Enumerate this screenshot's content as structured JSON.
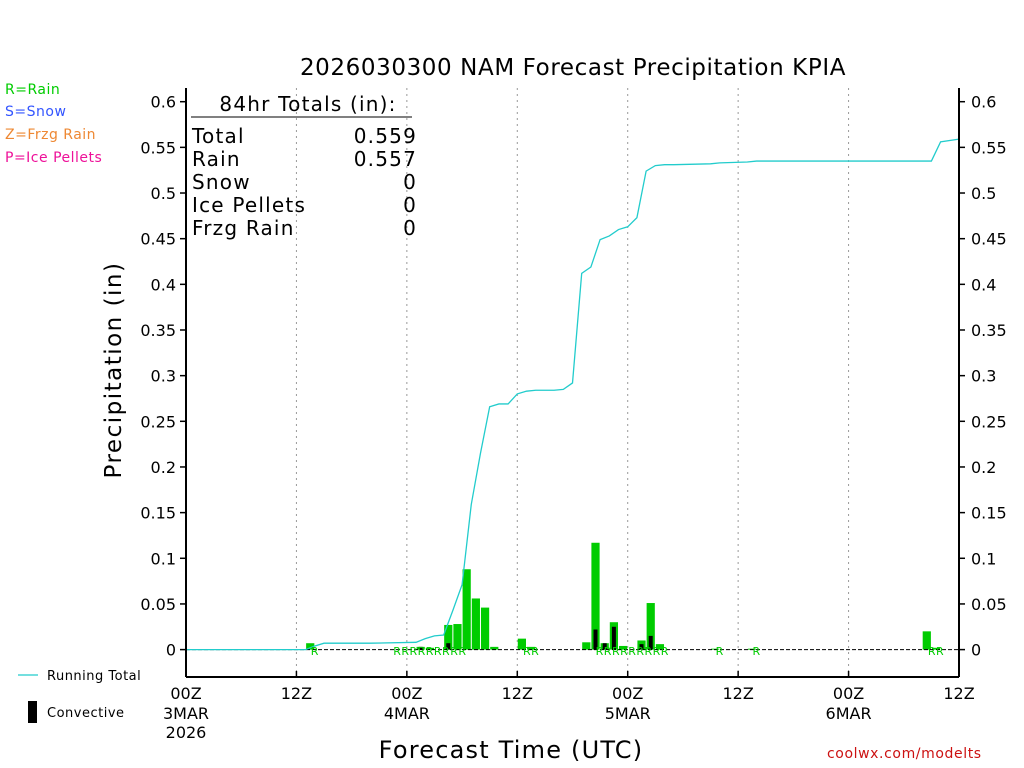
{
  "colors": {
    "rain": "#00cc00",
    "snow": "#3355ff",
    "frzg": "#ee8833",
    "ice": "#ee1199",
    "running_total": "#22cccc",
    "convective": "#000000",
    "credit": "#cc1111"
  },
  "legend": {
    "rain": "R=Rain",
    "snow": "S=Snow",
    "frzg": "Z=Frzg Rain",
    "ice": "P=Ice Pellets",
    "running_total": "Running Total",
    "convective": "Convective"
  },
  "credit": "coolwx.com/modelts",
  "chart_data": {
    "type": "bar",
    "title": "2026030300 NAM Forecast Precipitation KPIA",
    "xlabel": "Forecast Time (UTC)",
    "ylabel": "Precipitation (in)",
    "ylim": [
      -0.03,
      0.615
    ],
    "xlim_hours": [
      0,
      84
    ],
    "y_ticks": [
      0,
      0.05,
      0.1,
      0.15,
      0.2,
      0.25,
      0.3,
      0.35,
      0.4,
      0.45,
      0.5,
      0.55,
      0.6
    ],
    "y_tick_labels": [
      "0",
      "0.05",
      "0.1",
      "0.15",
      "0.2",
      "0.25",
      "0.3",
      "0.35",
      "0.4",
      "0.45",
      "0.5",
      "0.55",
      "0.6"
    ],
    "x_ticks": [
      {
        "hour": 0,
        "label": "00Z",
        "date": "3MAR",
        "year": "2026"
      },
      {
        "hour": 12,
        "label": "12Z",
        "date": "",
        "year": ""
      },
      {
        "hour": 24,
        "label": "00Z",
        "date": "4MAR",
        "year": ""
      },
      {
        "hour": 36,
        "label": "12Z",
        "date": "",
        "year": ""
      },
      {
        "hour": 48,
        "label": "00Z",
        "date": "5MAR",
        "year": ""
      },
      {
        "hour": 60,
        "label": "12Z",
        "date": "",
        "year": ""
      },
      {
        "hour": 72,
        "label": "00Z",
        "date": "6MAR",
        "year": ""
      },
      {
        "hour": 84,
        "label": "12Z",
        "date": "",
        "year": ""
      }
    ],
    "totals_box": {
      "header": "84hr Totals (in):",
      "rows": [
        {
          "label": "Total",
          "value": "0.559"
        },
        {
          "label": "Rain",
          "value": "0.557"
        },
        {
          "label": "Snow",
          "value": "0"
        },
        {
          "label": "Ice Pellets",
          "value": "0"
        },
        {
          "label": "Frzg Rain",
          "value": "0"
        }
      ]
    },
    "series": [
      {
        "name": "Rain (hourly)",
        "type": "bar",
        "x": [
          14,
          26,
          27,
          29,
          30,
          31,
          32,
          33,
          34,
          35,
          37,
          38,
          44,
          45,
          46,
          47,
          48,
          50,
          51,
          52,
          58,
          62,
          81,
          82
        ],
        "values": [
          0.007,
          0.003,
          0.002,
          0.027,
          0.028,
          0.088,
          0.056,
          0.046,
          0.003,
          0.0,
          0.012,
          0.003,
          0.008,
          0.117,
          0.007,
          0.03,
          0.004,
          0.01,
          0.051,
          0.006,
          0.001,
          0.001,
          0.02,
          0.002
        ]
      },
      {
        "name": "Convective",
        "type": "bar",
        "x": [
          26,
          29,
          45,
          46,
          47,
          50,
          51
        ],
        "values": [
          0.003,
          0.007,
          0.022,
          0.007,
          0.025,
          0.006,
          0.015
        ]
      },
      {
        "name": "Running Total",
        "type": "line",
        "x": [
          0,
          13,
          14,
          15,
          20,
          25,
          26,
          27,
          28,
          29,
          30,
          31,
          32,
          33,
          34,
          35,
          36,
          37,
          38,
          39,
          40,
          41,
          42,
          43,
          44,
          45,
          46,
          47,
          48,
          49,
          50,
          51,
          52,
          53,
          57,
          58,
          61,
          62,
          81,
          82,
          84
        ],
        "values": [
          0,
          0,
          0.004,
          0.007,
          0.007,
          0.008,
          0.012,
          0.015,
          0.016,
          0.043,
          0.071,
          0.159,
          0.215,
          0.266,
          0.269,
          0.269,
          0.28,
          0.283,
          0.284,
          0.284,
          0.284,
          0.285,
          0.292,
          0.412,
          0.419,
          0.449,
          0.453,
          0.46,
          0.463,
          0.473,
          0.524,
          0.53,
          0.531,
          0.531,
          0.532,
          0.533,
          0.534,
          0.535,
          0.535,
          0.556,
          0.559
        ]
      }
    ],
    "type_letters": [
      {
        "hour": 14,
        "text": "R"
      },
      {
        "hour": 26.5,
        "text": "RRRRRRRRR"
      },
      {
        "hour": 37.5,
        "text": "RR"
      },
      {
        "hour": 48.5,
        "text": "RRRRRRRRR"
      },
      {
        "hour": 58,
        "text": "R"
      },
      {
        "hour": 62,
        "text": "R"
      },
      {
        "hour": 81.5,
        "text": "RR"
      }
    ],
    "legend_position": "left"
  }
}
